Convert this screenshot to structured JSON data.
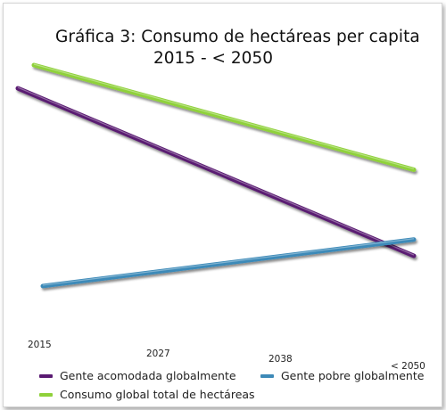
{
  "chart_data": {
    "type": "line",
    "title": "Gráfica 3: Consumo de hectáreas per capita",
    "subtitle": "2015 - < 2050",
    "x": [
      "2015",
      "2027",
      "2038",
      "< 2050"
    ],
    "series": [
      {
        "name": "Gente acomodada globalmente",
        "color": "#5a1a72",
        "start": 0.9,
        "end": 0.18
      },
      {
        "name": "Gente pobre globalmente",
        "color": "#3d8ab8",
        "start": 0.05,
        "end": 0.25
      },
      {
        "name": "Consumo global total de hectáreas",
        "color": "#8fd13a",
        "start": 1.0,
        "end": 0.55
      }
    ],
    "grid": false,
    "legend_position": "bottom"
  }
}
